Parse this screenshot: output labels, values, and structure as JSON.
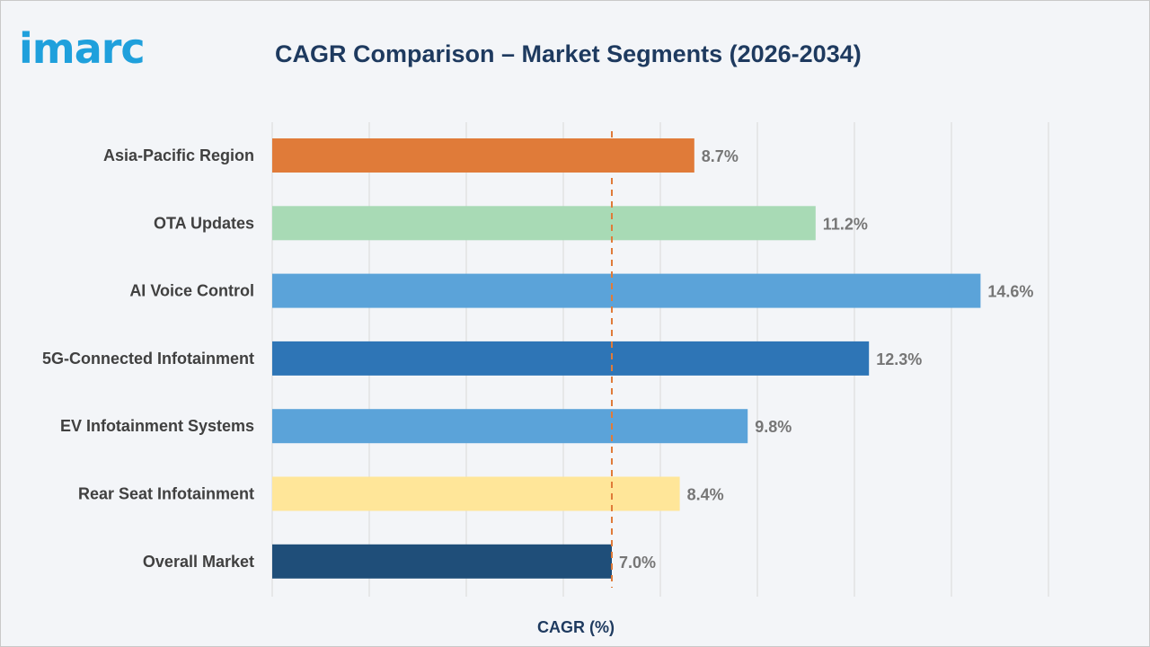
{
  "logo_text": "imarc",
  "chart_data": {
    "type": "bar",
    "orientation": "horizontal",
    "title": "CAGR Comparison – Market Segments (2026-2034)",
    "xlabel": "CAGR (%)",
    "ylabel": "",
    "xlim": [
      0,
      16
    ],
    "grid": true,
    "reference_line": {
      "value": 7.0,
      "style": "dashed",
      "color": "#e07b39"
    },
    "categories": [
      "Asia-Pacific Region",
      "OTA Updates",
      "AI Voice Control",
      "5G-Connected Infotainment",
      "EV Infotainment Systems",
      "Rear Seat Infotainment",
      "Overall Market"
    ],
    "values": [
      8.7,
      11.2,
      14.6,
      12.3,
      9.8,
      8.4,
      7.0
    ],
    "value_labels": [
      "8.7%",
      "11.2%",
      "14.6%",
      "12.3%",
      "9.8%",
      "8.4%",
      "7.0%"
    ],
    "colors": [
      "#e07b39",
      "#a8dab5",
      "#5ba3d9",
      "#2e75b6",
      "#5ba3d9",
      "#ffe699",
      "#1f4e79"
    ]
  }
}
